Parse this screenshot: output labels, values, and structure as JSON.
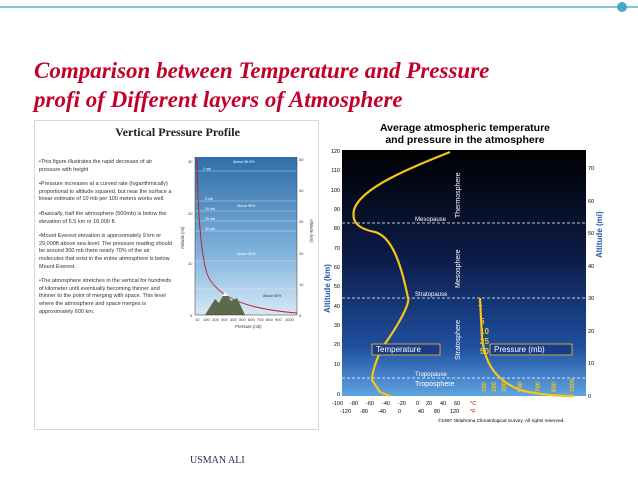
{
  "slide": {
    "title_line1": "Comparison between Temperature and Pressure",
    "title_line2": "profi of Different layers of Atmosphere",
    "footer": "USMAN ALI",
    "accent_color": "#c2002a",
    "bar_color": "#7fc4d8"
  },
  "left_figure": {
    "title": "Vertical Pressure Profile",
    "bullets": [
      "•This figure illustrates the rapid decrease of air pressure with height",
      "•Pressure increases at a curved rate (logarithmically) proportional to altitude squared, but near the surface a linear estimate of 10 mb per 100 meters works well.",
      "•Basically, half the atmosphere (500mb) is below the elevation of 5.5 km or 18,000 ft.",
      "•Mount Everest elevation is approximately 9 km or 29,000ft above sea-level. The pressure reading should be around 300 mb there nearly 70% of the air molecules that exist in the entire atmosphere is below Mount Everest.",
      "•The atmosphere stretches in the vertical for hundreds of kilometer until eventually becoming thinner and thinner to the point of merging with space. This level where the atmosphere and space merges is approximately 600 km."
    ],
    "y_left_label": "Altitude (mi)",
    "y_right_label": "Altitude (km)",
    "x_label": "Pressure (mb)",
    "x_ticks": [
      "10",
      "100",
      "200",
      "300",
      "400",
      "500",
      "600",
      "700",
      "800",
      "900",
      "1000"
    ],
    "y_left_ticks": [
      "30",
      "20",
      "10",
      "0"
    ],
    "y_right_ticks": [
      "50",
      "40",
      "30",
      "20",
      "10",
      "0"
    ],
    "annotations": [
      "Above 99.9%",
      "1 mb",
      "5 mb",
      "10 mb",
      "25 mb",
      "50 mb",
      "Above 99%",
      "Above 90%",
      "Above 50%"
    ]
  },
  "right_figure": {
    "title_line1": "Average atmospheric temperature",
    "title_line2": "and pressure in the atmosphere",
    "y_left_label": "Altitude (km)",
    "y_right_label": "Altitude (mi)",
    "y_left_ticks": [
      "120",
      "110",
      "100",
      "90",
      "80",
      "70",
      "60",
      "50",
      "40",
      "30",
      "20",
      "10",
      "0"
    ],
    "y_right_ticks": [
      "70",
      "60",
      "50",
      "40",
      "30",
      "20",
      "10",
      "0"
    ],
    "x_ticks_f": [
      "-100",
      "-80",
      "-60",
      "-40",
      "-20",
      "0",
      "20",
      "40",
      "60"
    ],
    "x_ticks_c": [
      "-120",
      "-80",
      "-40",
      "0",
      "40",
      "80",
      "120"
    ],
    "unit_c": "°C",
    "unit_f": "°F",
    "layers": [
      "Thermosphere",
      "Mesosphere",
      "Stratosphere",
      "Troposphere"
    ],
    "pauses": [
      "Mesopause",
      "Stratopause",
      "Tropopause"
    ],
    "temperature_label": "Temperature",
    "pressure_label": "Pressure (mb)",
    "pressure_values": [
      "1",
      "5",
      "10",
      "25",
      "50",
      "100",
      "200",
      "300",
      "500",
      "700",
      "850",
      "1000"
    ],
    "credit": "©1997 Oklahoma Climatological Survey.  All rights reserved."
  }
}
